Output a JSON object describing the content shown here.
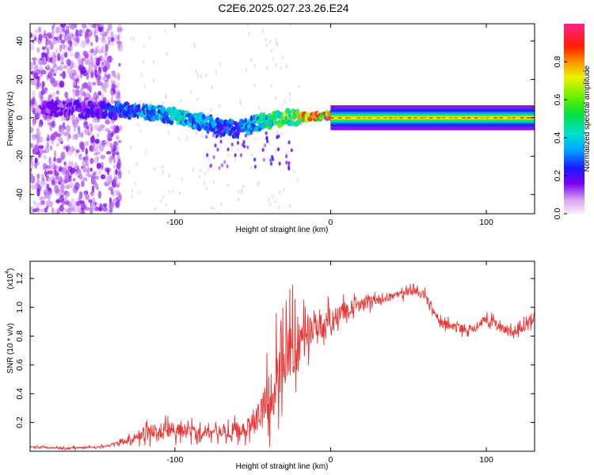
{
  "title": "C2E6.2025.027.23.26.E24",
  "colors": {
    "snr_line": "#ee3333",
    "axis": "#000000",
    "background": "#ffffff"
  },
  "chart_data": [
    {
      "type": "heatmap",
      "xlabel": "Height of straight line (km)",
      "ylabel": "Frequency (Hz)",
      "xlim": [
        -193,
        131
      ],
      "ylim": [
        -50,
        49
      ],
      "x_ticks": [
        -100,
        0,
        100
      ],
      "x_tick_labels": [
        "-100",
        "0",
        "100"
      ],
      "y_ticks": [
        -40,
        -20,
        0,
        20,
        40
      ],
      "y_tick_labels": [
        "-40",
        "-20",
        "0",
        "20",
        "40"
      ],
      "colorbar": {
        "label": "Normalized spectral amplitude",
        "range": [
          0.0,
          1.0
        ],
        "ticks": [
          0.0,
          0.2,
          0.4,
          0.6,
          0.8
        ],
        "tick_labels": [
          "0.0",
          "0.2",
          "0.4",
          "0.6",
          "0.8"
        ],
        "colormap": "rainbow"
      },
      "features": {
        "noise_region_x": [
          -193,
          -135
        ],
        "noise_amplitude": 0.05,
        "drifting_track": {
          "x": [
            -180,
            -150,
            -120,
            -100,
            -80,
            -60,
            -40,
            -25,
            -10,
            0,
            20,
            131
          ],
          "freq": [
            5,
            4,
            3,
            1,
            -3,
            -6,
            -1,
            0,
            1,
            1,
            0,
            0
          ],
          "amplitude": [
            0.15,
            0.2,
            0.35,
            0.4,
            0.35,
            0.3,
            0.45,
            0.6,
            0.8,
            0.85,
            0.75,
            0.65
          ]
        },
        "steady_line_x": [
          0,
          131
        ],
        "steady_line_freq": 0
      },
      "grid": false
    },
    {
      "type": "line",
      "xlabel": "Height of straight line (km)",
      "ylabel": "SNR (10 * v/v)",
      "scale_label": "(x10",
      "scale_exponent": "4",
      "scale_close": ")",
      "xlim": [
        -193,
        131
      ],
      "ylim": [
        0.0,
        1.32
      ],
      "x_ticks": [
        -100,
        0,
        100
      ],
      "x_tick_labels": [
        "-100",
        "0",
        "100"
      ],
      "y_ticks": [
        0.2,
        0.4,
        0.6,
        0.8,
        1.0,
        1.2
      ],
      "y_tick_labels": [
        "0.2",
        "0.4",
        "0.6",
        "0.8",
        "1.0",
        "1.2"
      ],
      "series": [
        {
          "x": [
            -193,
            -170,
            -150,
            -140,
            -130,
            -120,
            -110,
            -100,
            -90,
            -80,
            -70,
            -60,
            -50,
            -45,
            -40,
            -35,
            -30,
            -25,
            -20,
            -15,
            -10,
            -5,
            0,
            10,
            20,
            30,
            40,
            50,
            55,
            60,
            65,
            70,
            80,
            90,
            100,
            110,
            120,
            131
          ],
          "values": [
            0.03,
            0.02,
            0.03,
            0.04,
            0.07,
            0.12,
            0.14,
            0.15,
            0.14,
            0.13,
            0.13,
            0.15,
            0.18,
            0.28,
            0.38,
            0.5,
            0.65,
            0.72,
            0.75,
            0.82,
            0.85,
            0.88,
            0.92,
            0.98,
            1.02,
            1.05,
            1.08,
            1.1,
            1.12,
            1.09,
            1.0,
            0.9,
            0.86,
            0.85,
            0.92,
            0.85,
            0.84,
            0.92
          ],
          "noise": [
            0.01,
            0.01,
            0.01,
            0.02,
            0.05,
            0.08,
            0.1,
            0.1,
            0.08,
            0.07,
            0.07,
            0.09,
            0.12,
            0.2,
            0.3,
            0.4,
            0.45,
            0.4,
            0.3,
            0.25,
            0.2,
            0.18,
            0.12,
            0.1,
            0.08,
            0.06,
            0.05,
            0.05,
            0.05,
            0.05,
            0.05,
            0.05,
            0.05,
            0.05,
            0.06,
            0.05,
            0.05,
            0.06
          ]
        }
      ],
      "grid": false
    }
  ]
}
